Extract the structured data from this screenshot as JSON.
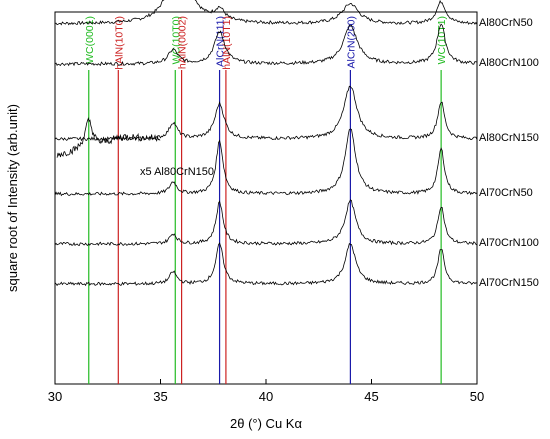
{
  "chart_data": {
    "type": "line",
    "xlabel": "2θ (°) Cu Kα",
    "ylabel": "square root of Intensity   (arb.unit)",
    "xlim": [
      30,
      50
    ],
    "xticks": [
      30,
      35,
      40,
      45,
      50
    ],
    "yticks": [],
    "grid": false,
    "reference_lines": [
      {
        "label": "WC(0001)",
        "x": 31.6,
        "color": "#22bb22"
      },
      {
        "label": "hAlN(10T0)",
        "x": 33.0,
        "color": "#cc2222"
      },
      {
        "label": "WC(10T0)",
        "x": 35.7,
        "color": "#22bb22"
      },
      {
        "label": "hAlN(0002)",
        "x": 36.0,
        "color": "#cc2222"
      },
      {
        "label": "AlCrN(111)",
        "x": 37.8,
        "color": "#1a1aaa"
      },
      {
        "label": "hAlN(10T1)",
        "x": 38.1,
        "color": "#cc2222"
      },
      {
        "label": "AlCrN(200)",
        "x": 44.0,
        "color": "#1a1aaa"
      },
      {
        "label": "WC(10T1)",
        "x": 48.3,
        "color": "#22bb22"
      }
    ],
    "inset": {
      "label": "x5  Al80CrN150",
      "x": [
        30.1,
        35.0
      ],
      "peak_x": 31.6
    },
    "series": [
      {
        "name": "Al80CrN50",
        "baseline": 360,
        "peaks": [
          {
            "x": 35.9,
            "height": 78,
            "width": 0.75
          },
          {
            "x": 37.8,
            "height": 12,
            "width": 0.45
          },
          {
            "x": 44.0,
            "height": 20,
            "width": 0.7
          },
          {
            "x": 48.3,
            "height": 22,
            "width": 0.4
          }
        ]
      },
      {
        "name": "Al80CrN100",
        "baseline": 320,
        "peaks": [
          {
            "x": 35.6,
            "height": 14,
            "width": 0.4
          },
          {
            "x": 37.8,
            "height": 32,
            "width": 0.45
          },
          {
            "x": 44.0,
            "height": 38,
            "width": 0.6
          },
          {
            "x": 48.3,
            "height": 40,
            "width": 0.35
          }
        ]
      },
      {
        "name": "Al80CrN150",
        "baseline": 245,
        "peaks": [
          {
            "x": 35.6,
            "height": 16,
            "width": 0.35
          },
          {
            "x": 37.8,
            "height": 35,
            "width": 0.4
          },
          {
            "x": 44.0,
            "height": 53,
            "width": 0.55
          },
          {
            "x": 48.3,
            "height": 37,
            "width": 0.3
          }
        ]
      },
      {
        "name": "Al70CrN50",
        "baseline": 190,
        "peaks": [
          {
            "x": 35.6,
            "height": 12,
            "width": 0.3
          },
          {
            "x": 37.8,
            "height": 53,
            "width": 0.3
          },
          {
            "x": 44.0,
            "height": 65,
            "width": 0.45
          },
          {
            "x": 48.3,
            "height": 45,
            "width": 0.28
          }
        ]
      },
      {
        "name": "Al70CrN100",
        "baseline": 140,
        "peaks": [
          {
            "x": 35.6,
            "height": 10,
            "width": 0.3
          },
          {
            "x": 37.8,
            "height": 42,
            "width": 0.3
          },
          {
            "x": 44.0,
            "height": 43,
            "width": 0.45
          },
          {
            "x": 48.3,
            "height": 38,
            "width": 0.28
          }
        ]
      },
      {
        "name": "Al70CrN150",
        "baseline": 100,
        "peaks": [
          {
            "x": 35.6,
            "height": 12,
            "width": 0.3
          },
          {
            "x": 37.8,
            "height": 40,
            "width": 0.32
          },
          {
            "x": 44.0,
            "height": 40,
            "width": 0.45
          },
          {
            "x": 48.3,
            "height": 35,
            "width": 0.28
          }
        ]
      }
    ]
  }
}
